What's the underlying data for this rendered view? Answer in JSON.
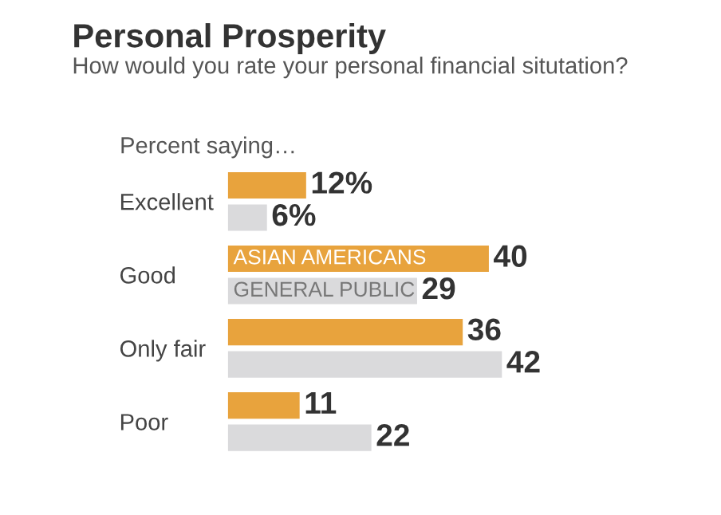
{
  "chart_data": {
    "type": "bar",
    "orientation": "horizontal",
    "title": "Personal Prosperity",
    "subtitle": "How would you rate your personal financial situtation?",
    "annotations": [
      "Percent saying…"
    ],
    "categories": [
      "Excellent",
      "Good",
      "Only fair",
      "Poor"
    ],
    "series": [
      {
        "name": "ASIAN AMERICANS",
        "color": "#e8a33d",
        "values": [
          12,
          40,
          36,
          11
        ],
        "value_labels": [
          "12%",
          "40",
          "36",
          "11"
        ]
      },
      {
        "name": "GENERAL PUBLIC",
        "color": "#dadadc",
        "values": [
          6,
          29,
          42,
          22
        ],
        "value_labels": [
          "6%",
          "29",
          "42",
          "22"
        ]
      }
    ],
    "legend": false,
    "grid": false
  }
}
